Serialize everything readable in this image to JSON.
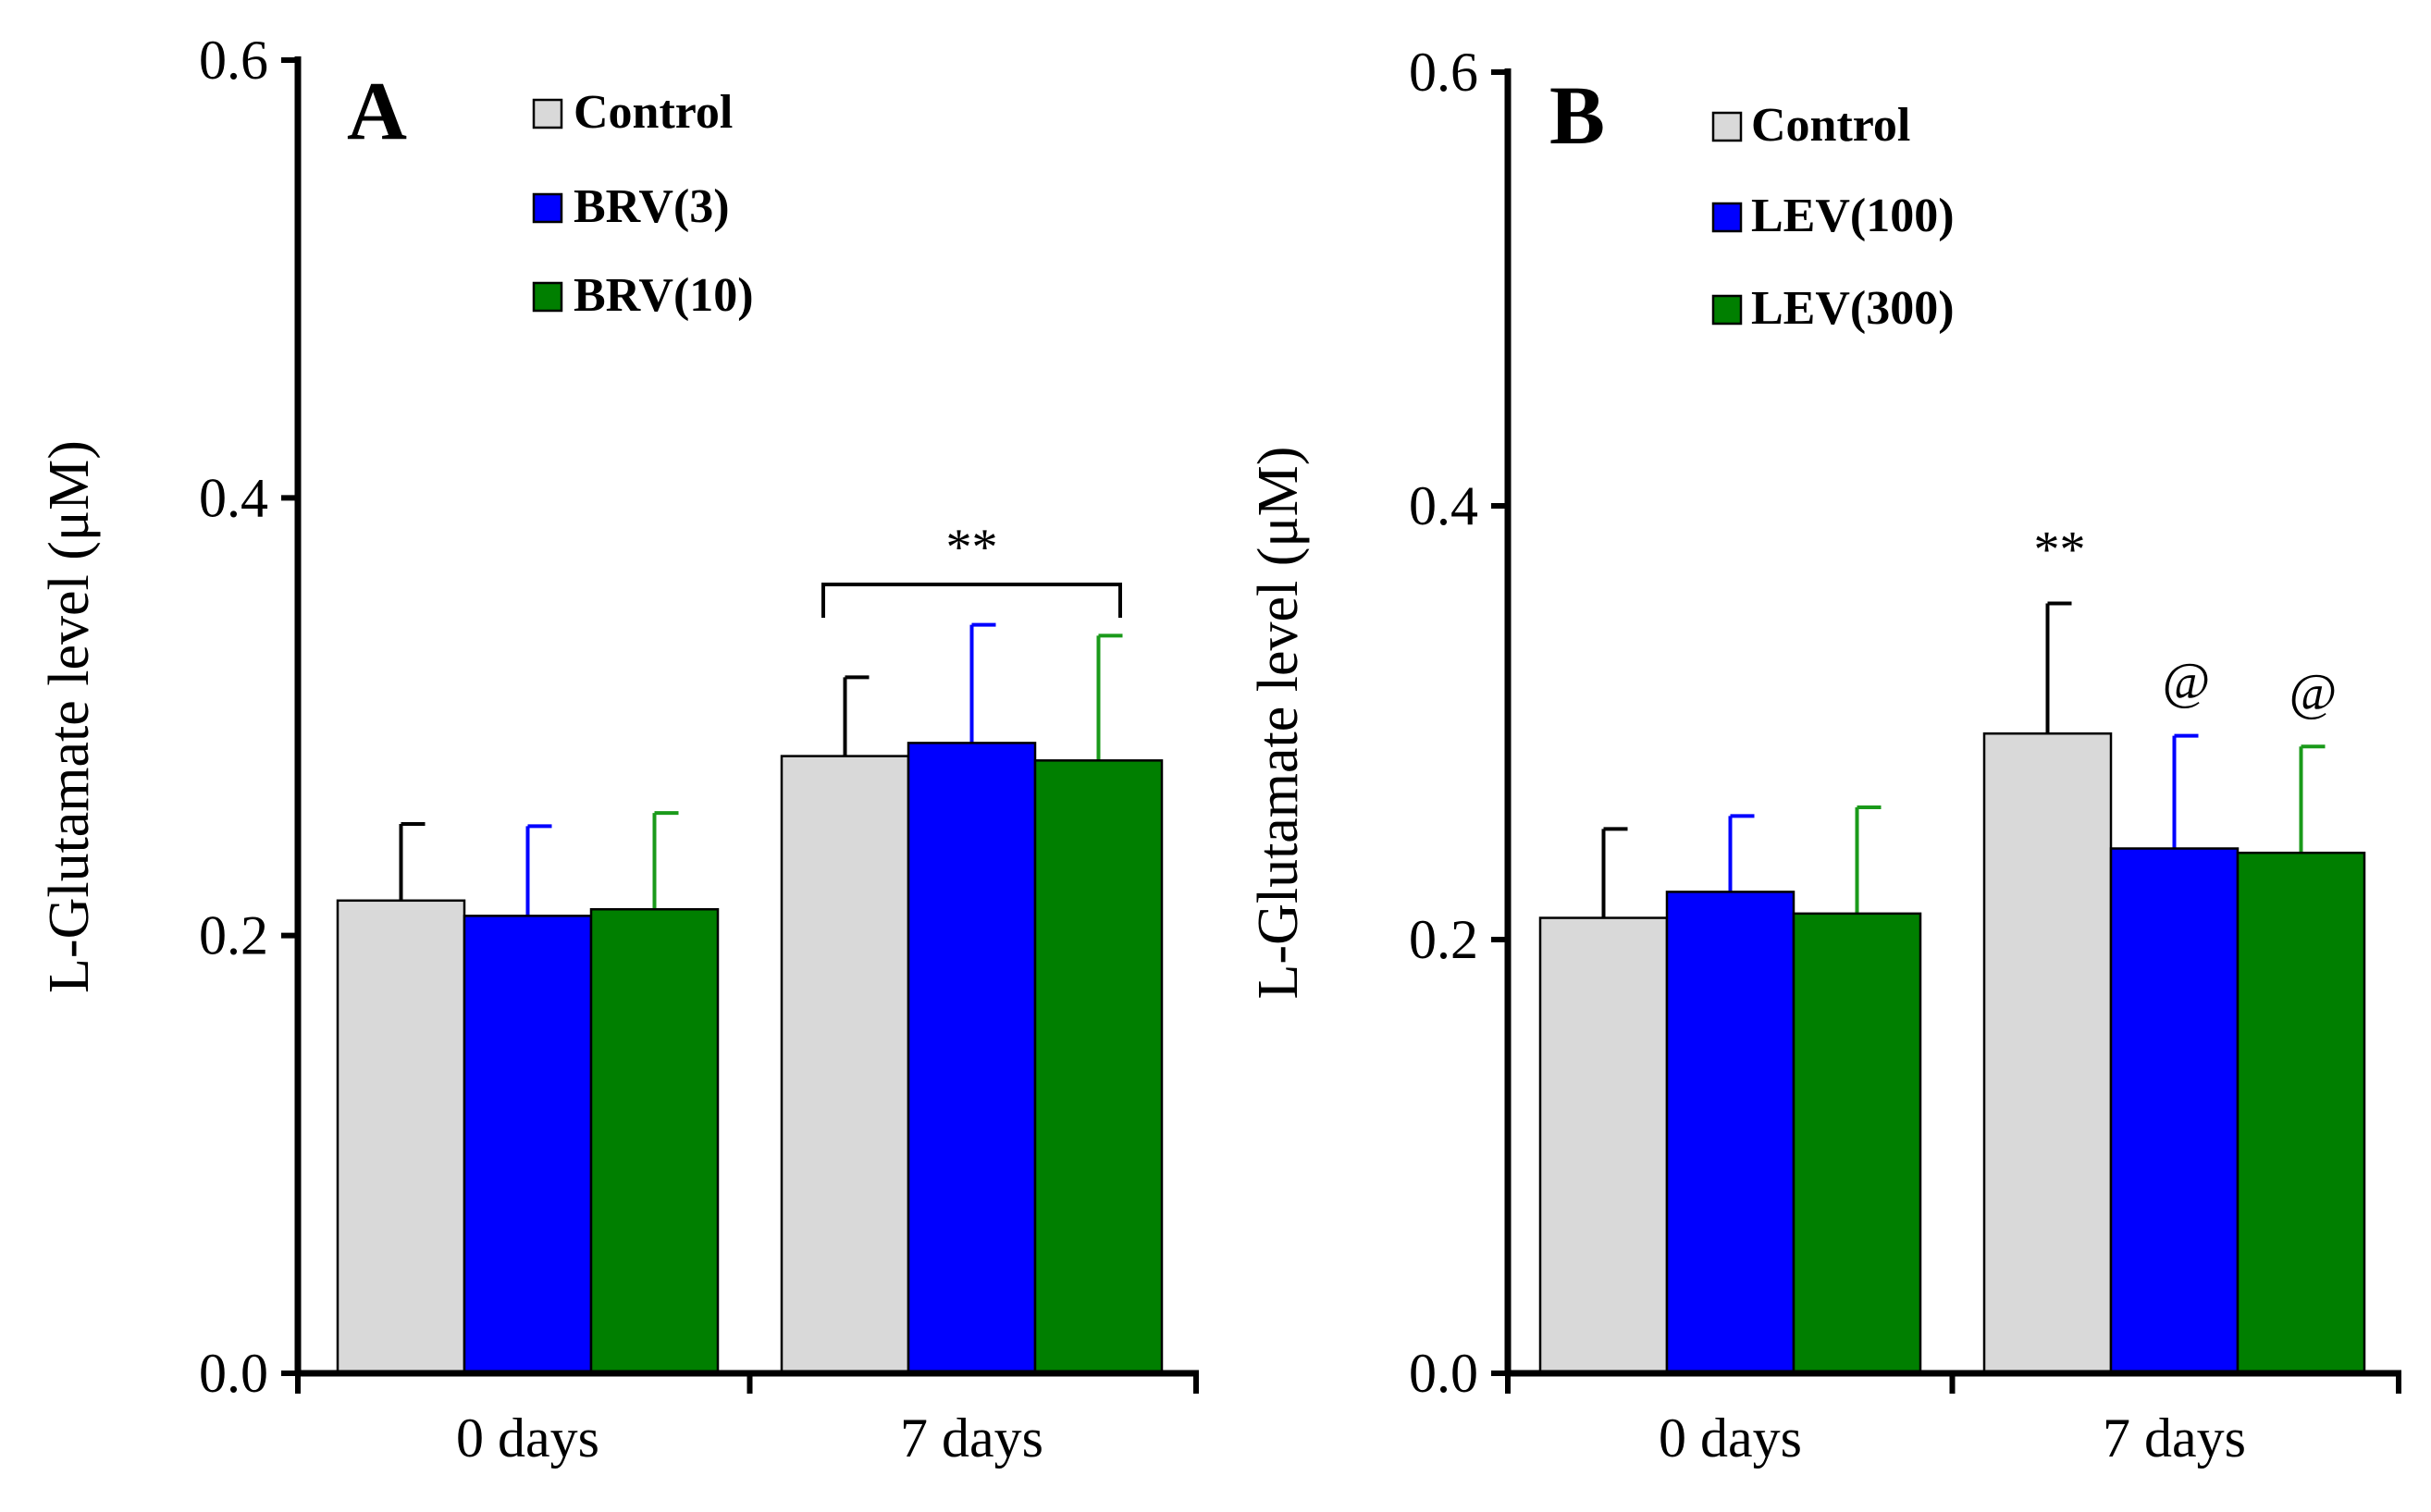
{
  "chart_data": [
    {
      "type": "bar",
      "panel": "A",
      "ylabel": "L-Glutamate  level (μM)",
      "xlabel": "",
      "ylim": [
        0,
        0.6
      ],
      "yticks": [
        "0.0",
        "0.2",
        "0.4",
        "0.6"
      ],
      "categories": [
        "0 days",
        "7 days"
      ],
      "series": [
        {
          "name": "Control",
          "color": "#d9d9d9",
          "errcolor": "#000000",
          "values": [
            0.216,
            0.282
          ],
          "errors": [
            0.035,
            0.036
          ]
        },
        {
          "name": "BRV(3)",
          "color": "#0000ff",
          "errcolor": "#0000ff",
          "values": [
            0.209,
            0.288
          ],
          "errors": [
            0.041,
            0.054
          ]
        },
        {
          "name": "BRV(10)",
          "color": "#007f00",
          "errcolor": "#1a9a1a",
          "values": [
            0.212,
            0.28
          ],
          "errors": [
            0.044,
            0.057
          ]
        }
      ],
      "annotations": [
        {
          "text": "**",
          "category": "7 days",
          "type": "bracket"
        }
      ]
    },
    {
      "type": "bar",
      "panel": "B",
      "ylabel": "L-Glutamate  level (μM)",
      "xlabel": "",
      "ylim": [
        0,
        0.6
      ],
      "yticks": [
        "0.0",
        "0.2",
        "0.4",
        "0.6"
      ],
      "categories": [
        "0 days",
        "7 days"
      ],
      "series": [
        {
          "name": "Control",
          "color": "#d9d9d9",
          "errcolor": "#000000",
          "values": [
            0.21,
            0.295
          ],
          "errors": [
            0.041,
            0.06
          ]
        },
        {
          "name": "LEV(100)",
          "color": "#0000ff",
          "errcolor": "#0000ff",
          "values": [
            0.222,
            0.242
          ],
          "errors": [
            0.035,
            0.052
          ]
        },
        {
          "name": "LEV(300)",
          "color": "#007f00",
          "errcolor": "#1a9a1a",
          "values": [
            0.212,
            0.24
          ],
          "errors": [
            0.049,
            0.049
          ]
        }
      ],
      "annotations": [
        {
          "text": "**",
          "category": "7 days",
          "series": "Control"
        },
        {
          "text": "@",
          "category": "7 days",
          "series": "LEV(100)"
        },
        {
          "text": "@",
          "category": "7 days",
          "series": "LEV(300)"
        }
      ]
    }
  ]
}
